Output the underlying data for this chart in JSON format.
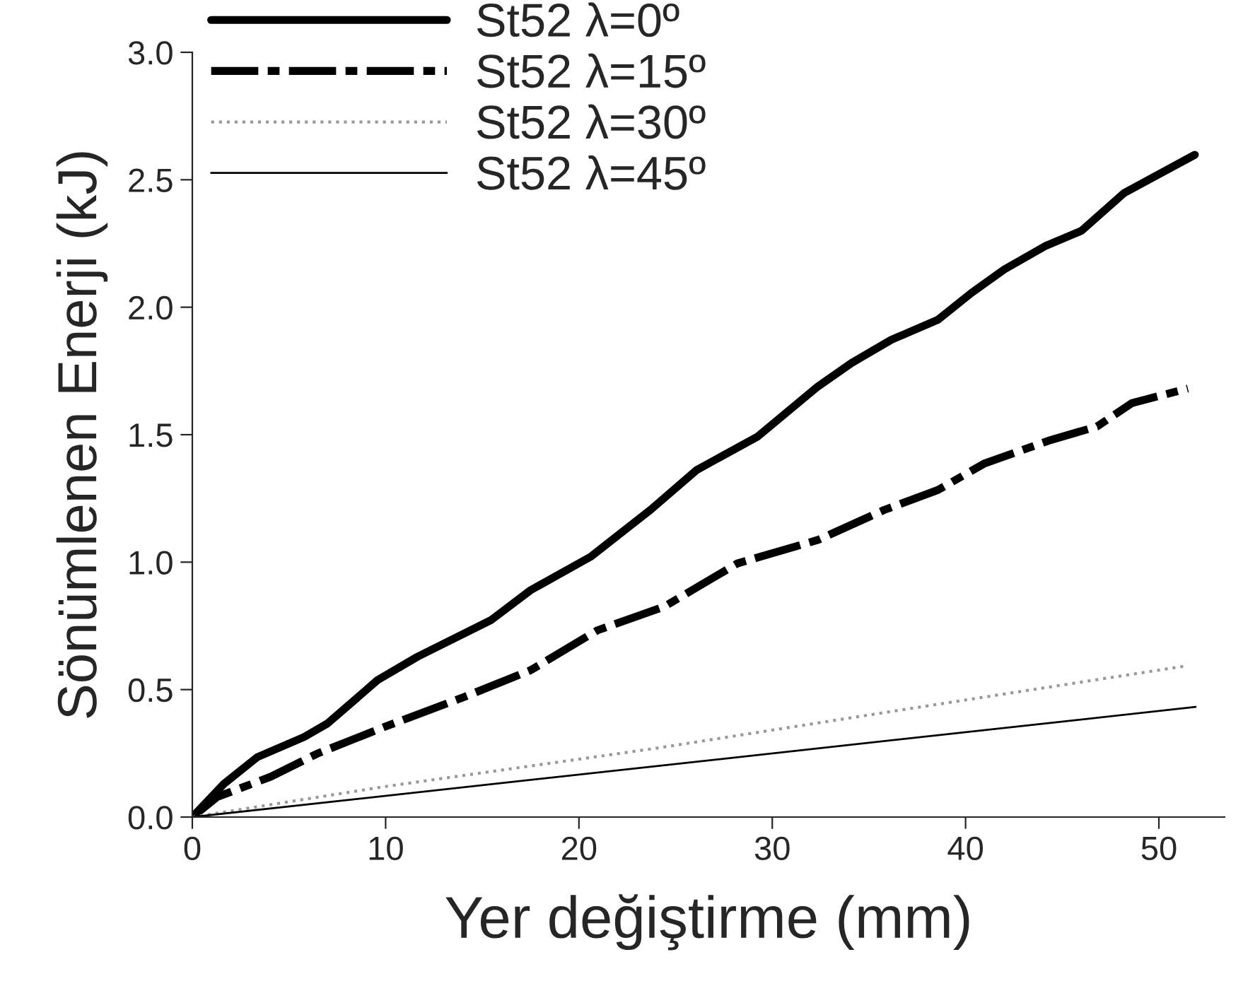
{
  "chart_data": {
    "type": "line",
    "xlabel": "Yer değiştirme (mm)",
    "ylabel": "Sönümlenen Enerji (kJ)",
    "xlim": [
      0,
      53.4
    ],
    "xticks": [
      0,
      10,
      20,
      30,
      40,
      50
    ],
    "ylim": [
      0,
      3.0
    ],
    "yticks": [
      {
        "value": 0,
        "label": "0.0"
      },
      0.5,
      {
        "value": 1,
        "label": "1.0"
      },
      1.5,
      {
        "value": 2,
        "label": "2.0"
      },
      2.5,
      {
        "value": 3,
        "label": "3.0"
      }
    ],
    "grid": false,
    "legend": "top left",
    "marker": "none",
    "series": [
      {
        "name": "St52 λ=0º",
        "color": "#000000",
        "line_style": "solid",
        "x": [
          0,
          1.63,
          3.36,
          5.78,
          6.99,
          9.58,
          11.65,
          15.44,
          17.5,
          20.6,
          23.7,
          26.1,
          29.25,
          32.36,
          34.1,
          36.15,
          38.57,
          40.3,
          42.0,
          44.1,
          46.0,
          48.2,
          51.86
        ],
        "values": [
          0,
          0.13,
          0.235,
          0.314,
          0.367,
          0.537,
          0.629,
          0.772,
          0.89,
          1.021,
          1.205,
          1.362,
          1.493,
          1.689,
          1.781,
          1.872,
          1.951,
          2.056,
          2.148,
          2.239,
          2.3,
          2.448,
          2.598
        ]
      },
      {
        "name": "St52 λ=15º",
        "color": "#000000",
        "line_style": "dashed",
        "x": [
          0,
          1.29,
          4.05,
          6.47,
          9.92,
          14.06,
          17.5,
          20.97,
          24.4,
          28.2,
          32.36,
          35.8,
          38.57,
          41.0,
          44.4,
          46.8,
          48.6,
          51.5
        ],
        "values": [
          0,
          0.079,
          0.158,
          0.249,
          0.353,
          0.471,
          0.576,
          0.733,
          0.825,
          0.995,
          1.087,
          1.205,
          1.283,
          1.388,
          1.479,
          1.532,
          1.624,
          1.681
        ]
      },
      {
        "name": "St52 λ=30º",
        "color": "#999999",
        "line_style": "dotted",
        "x": [
          0,
          10,
          24,
          37.5,
          51.5
        ],
        "values": [
          0,
          0.12,
          0.27,
          0.43,
          0.594
        ]
      },
      {
        "name": "St52 λ=45º",
        "color": "#000000",
        "line_style": "solid",
        "x": [
          0,
          51.9
        ],
        "values": [
          0,
          0.432
        ]
      }
    ]
  }
}
